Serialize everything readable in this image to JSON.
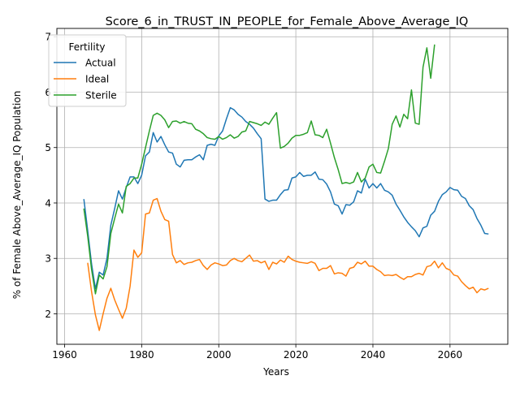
{
  "chart_data": {
    "type": "line",
    "title": "Score_6_in_TRUST_IN_PEOPLE_for_Female_Above_Average_IQ",
    "xlabel": "Years",
    "ylabel": "% of Female Above_Average_IQ Population",
    "xlim": [
      1958,
      2075
    ],
    "ylim": [
      1.45,
      7.15
    ],
    "xticks": [
      1960,
      1980,
      2000,
      2020,
      2040,
      2060
    ],
    "yticks": [
      2,
      3,
      4,
      5,
      6,
      7
    ],
    "grid": true,
    "legend": {
      "title": "Fertility",
      "placement": "top-left"
    },
    "series": [
      {
        "name": "Actual",
        "color": "#1f77b4",
        "points": [
          [
            1965,
            4.07
          ],
          [
            1966,
            3.5
          ],
          [
            1967,
            2.9
          ],
          [
            1968,
            2.45
          ],
          [
            1969,
            2.75
          ],
          [
            1970,
            2.7
          ],
          [
            1971,
            3.0
          ],
          [
            1972,
            3.6
          ],
          [
            1973,
            3.9
          ],
          [
            1974,
            4.22
          ],
          [
            1975,
            4.07
          ],
          [
            1976,
            4.28
          ],
          [
            1977,
            4.47
          ],
          [
            1978,
            4.47
          ],
          [
            1979,
            4.35
          ],
          [
            1980,
            4.5
          ],
          [
            1981,
            4.85
          ],
          [
            1982,
            4.92
          ],
          [
            1983,
            5.27
          ],
          [
            1984,
            5.1
          ],
          [
            1985,
            5.2
          ],
          [
            1986,
            5.05
          ],
          [
            1987,
            4.92
          ],
          [
            1988,
            4.9
          ],
          [
            1989,
            4.7
          ],
          [
            1990,
            4.65
          ],
          [
            1991,
            4.77
          ],
          [
            1992,
            4.78
          ],
          [
            1993,
            4.78
          ],
          [
            1994,
            4.83
          ],
          [
            1995,
            4.87
          ],
          [
            1996,
            4.78
          ],
          [
            1997,
            5.04
          ],
          [
            1998,
            5.06
          ],
          [
            1999,
            5.04
          ],
          [
            2000,
            5.21
          ],
          [
            2001,
            5.3
          ],
          [
            2002,
            5.52
          ],
          [
            2003,
            5.72
          ],
          [
            2004,
            5.68
          ],
          [
            2005,
            5.6
          ],
          [
            2006,
            5.55
          ],
          [
            2007,
            5.47
          ],
          [
            2008,
            5.42
          ],
          [
            2009,
            5.35
          ],
          [
            2010,
            5.25
          ],
          [
            2011,
            5.16
          ],
          [
            2012,
            4.07
          ],
          [
            2013,
            4.03
          ],
          [
            2014,
            4.05
          ],
          [
            2015,
            4.05
          ],
          [
            2016,
            4.15
          ],
          [
            2017,
            4.23
          ],
          [
            2018,
            4.24
          ],
          [
            2019,
            4.45
          ],
          [
            2020,
            4.47
          ],
          [
            2021,
            4.55
          ],
          [
            2022,
            4.48
          ],
          [
            2023,
            4.5
          ],
          [
            2024,
            4.5
          ],
          [
            2025,
            4.56
          ],
          [
            2026,
            4.43
          ],
          [
            2027,
            4.42
          ],
          [
            2028,
            4.34
          ],
          [
            2029,
            4.2
          ],
          [
            2030,
            3.98
          ],
          [
            2031,
            3.95
          ],
          [
            2032,
            3.8
          ],
          [
            2033,
            3.97
          ],
          [
            2034,
            3.96
          ],
          [
            2035,
            4.02
          ],
          [
            2036,
            4.22
          ],
          [
            2037,
            4.18
          ],
          [
            2038,
            4.43
          ],
          [
            2039,
            4.27
          ],
          [
            2040,
            4.35
          ],
          [
            2041,
            4.27
          ],
          [
            2042,
            4.35
          ],
          [
            2043,
            4.23
          ],
          [
            2044,
            4.2
          ],
          [
            2045,
            4.14
          ],
          [
            2046,
            3.98
          ],
          [
            2047,
            3.87
          ],
          [
            2048,
            3.75
          ],
          [
            2049,
            3.65
          ],
          [
            2050,
            3.57
          ],
          [
            2051,
            3.5
          ],
          [
            2052,
            3.39
          ],
          [
            2053,
            3.55
          ],
          [
            2054,
            3.58
          ],
          [
            2055,
            3.78
          ],
          [
            2056,
            3.85
          ],
          [
            2057,
            4.03
          ],
          [
            2058,
            4.15
          ],
          [
            2059,
            4.2
          ],
          [
            2060,
            4.28
          ],
          [
            2061,
            4.24
          ],
          [
            2062,
            4.23
          ],
          [
            2063,
            4.12
          ],
          [
            2064,
            4.08
          ],
          [
            2065,
            3.95
          ],
          [
            2066,
            3.88
          ],
          [
            2067,
            3.72
          ],
          [
            2068,
            3.6
          ],
          [
            2069,
            3.45
          ],
          [
            2070,
            3.44
          ]
        ]
      },
      {
        "name": "Ideal",
        "color": "#ff7f0e",
        "points": [
          [
            1966,
            2.92
          ],
          [
            1967,
            2.4
          ],
          [
            1968,
            1.98
          ],
          [
            1969,
            1.7
          ],
          [
            1970,
            2.0
          ],
          [
            1971,
            2.28
          ],
          [
            1972,
            2.46
          ],
          [
            1973,
            2.25
          ],
          [
            1974,
            2.08
          ],
          [
            1975,
            1.92
          ],
          [
            1976,
            2.1
          ],
          [
            1977,
            2.5
          ],
          [
            1978,
            3.15
          ],
          [
            1979,
            3.02
          ],
          [
            1980,
            3.1
          ],
          [
            1981,
            3.8
          ],
          [
            1982,
            3.82
          ],
          [
            1983,
            4.05
          ],
          [
            1984,
            4.08
          ],
          [
            1985,
            3.85
          ],
          [
            1986,
            3.7
          ],
          [
            1987,
            3.67
          ],
          [
            1988,
            3.07
          ],
          [
            1989,
            2.92
          ],
          [
            1990,
            2.96
          ],
          [
            1991,
            2.89
          ],
          [
            1992,
            2.92
          ],
          [
            1993,
            2.93
          ],
          [
            1994,
            2.96
          ],
          [
            1995,
            2.98
          ],
          [
            1996,
            2.87
          ],
          [
            1997,
            2.8
          ],
          [
            1998,
            2.88
          ],
          [
            1999,
            2.92
          ],
          [
            2000,
            2.9
          ],
          [
            2001,
            2.87
          ],
          [
            2002,
            2.88
          ],
          [
            2003,
            2.96
          ],
          [
            2004,
            3.0
          ],
          [
            2005,
            2.96
          ],
          [
            2006,
            2.94
          ],
          [
            2007,
            3.0
          ],
          [
            2008,
            3.06
          ],
          [
            2009,
            2.95
          ],
          [
            2010,
            2.96
          ],
          [
            2011,
            2.92
          ],
          [
            2012,
            2.95
          ],
          [
            2013,
            2.8
          ],
          [
            2014,
            2.93
          ],
          [
            2015,
            2.9
          ],
          [
            2016,
            2.97
          ],
          [
            2017,
            2.93
          ],
          [
            2018,
            3.04
          ],
          [
            2019,
            2.98
          ],
          [
            2020,
            2.95
          ],
          [
            2021,
            2.93
          ],
          [
            2022,
            2.92
          ],
          [
            2023,
            2.91
          ],
          [
            2024,
            2.94
          ],
          [
            2025,
            2.91
          ],
          [
            2026,
            2.78
          ],
          [
            2027,
            2.82
          ],
          [
            2028,
            2.82
          ],
          [
            2029,
            2.87
          ],
          [
            2030,
            2.72
          ],
          [
            2031,
            2.74
          ],
          [
            2032,
            2.73
          ],
          [
            2033,
            2.68
          ],
          [
            2034,
            2.82
          ],
          [
            2035,
            2.84
          ],
          [
            2036,
            2.93
          ],
          [
            2037,
            2.9
          ],
          [
            2038,
            2.95
          ],
          [
            2039,
            2.86
          ],
          [
            2040,
            2.86
          ],
          [
            2041,
            2.8
          ],
          [
            2042,
            2.76
          ],
          [
            2043,
            2.69
          ],
          [
            2044,
            2.7
          ],
          [
            2045,
            2.69
          ],
          [
            2046,
            2.71
          ],
          [
            2047,
            2.66
          ],
          [
            2048,
            2.62
          ],
          [
            2049,
            2.67
          ],
          [
            2050,
            2.67
          ],
          [
            2051,
            2.71
          ],
          [
            2052,
            2.73
          ],
          [
            2053,
            2.7
          ],
          [
            2054,
            2.85
          ],
          [
            2055,
            2.87
          ],
          [
            2056,
            2.95
          ],
          [
            2057,
            2.83
          ],
          [
            2058,
            2.92
          ],
          [
            2059,
            2.82
          ],
          [
            2060,
            2.79
          ],
          [
            2061,
            2.7
          ],
          [
            2062,
            2.68
          ],
          [
            2063,
            2.58
          ],
          [
            2064,
            2.51
          ],
          [
            2065,
            2.45
          ],
          [
            2066,
            2.48
          ],
          [
            2067,
            2.38
          ],
          [
            2068,
            2.45
          ],
          [
            2069,
            2.43
          ],
          [
            2070,
            2.46
          ]
        ]
      },
      {
        "name": "Sterile",
        "color": "#2ca02c",
        "points": [
          [
            1965,
            3.9
          ],
          [
            1966,
            3.4
          ],
          [
            1967,
            2.8
          ],
          [
            1968,
            2.36
          ],
          [
            1969,
            2.7
          ],
          [
            1970,
            2.63
          ],
          [
            1971,
            2.85
          ],
          [
            1972,
            3.45
          ],
          [
            1973,
            3.72
          ],
          [
            1974,
            3.98
          ],
          [
            1975,
            3.82
          ],
          [
            1976,
            4.3
          ],
          [
            1977,
            4.35
          ],
          [
            1978,
            4.45
          ],
          [
            1979,
            4.45
          ],
          [
            1980,
            4.7
          ],
          [
            1981,
            5.0
          ],
          [
            1982,
            5.3
          ],
          [
            1983,
            5.58
          ],
          [
            1984,
            5.62
          ],
          [
            1985,
            5.58
          ],
          [
            1986,
            5.5
          ],
          [
            1987,
            5.36
          ],
          [
            1988,
            5.47
          ],
          [
            1989,
            5.48
          ],
          [
            1990,
            5.44
          ],
          [
            1991,
            5.47
          ],
          [
            1992,
            5.44
          ],
          [
            1993,
            5.43
          ],
          [
            1994,
            5.33
          ],
          [
            1995,
            5.3
          ],
          [
            1996,
            5.25
          ],
          [
            1997,
            5.18
          ],
          [
            1998,
            5.16
          ],
          [
            1999,
            5.15
          ],
          [
            2000,
            5.2
          ],
          [
            2001,
            5.15
          ],
          [
            2002,
            5.18
          ],
          [
            2003,
            5.23
          ],
          [
            2004,
            5.17
          ],
          [
            2005,
            5.2
          ],
          [
            2006,
            5.28
          ],
          [
            2007,
            5.3
          ],
          [
            2008,
            5.47
          ],
          [
            2009,
            5.45
          ],
          [
            2010,
            5.43
          ],
          [
            2011,
            5.4
          ],
          [
            2012,
            5.46
          ],
          [
            2013,
            5.42
          ],
          [
            2014,
            5.53
          ],
          [
            2015,
            5.63
          ],
          [
            2016,
            4.99
          ],
          [
            2017,
            5.02
          ],
          [
            2018,
            5.08
          ],
          [
            2019,
            5.17
          ],
          [
            2020,
            5.22
          ],
          [
            2021,
            5.22
          ],
          [
            2022,
            5.24
          ],
          [
            2023,
            5.27
          ],
          [
            2024,
            5.48
          ],
          [
            2025,
            5.23
          ],
          [
            2026,
            5.22
          ],
          [
            2027,
            5.18
          ],
          [
            2028,
            5.33
          ],
          [
            2029,
            5.08
          ],
          [
            2030,
            4.82
          ],
          [
            2031,
            4.6
          ],
          [
            2032,
            4.35
          ],
          [
            2033,
            4.37
          ],
          [
            2034,
            4.35
          ],
          [
            2035,
            4.38
          ],
          [
            2036,
            4.55
          ],
          [
            2037,
            4.38
          ],
          [
            2038,
            4.45
          ],
          [
            2039,
            4.65
          ],
          [
            2040,
            4.7
          ],
          [
            2041,
            4.55
          ],
          [
            2042,
            4.54
          ],
          [
            2043,
            4.75
          ],
          [
            2044,
            4.98
          ],
          [
            2045,
            5.42
          ],
          [
            2046,
            5.57
          ],
          [
            2047,
            5.37
          ],
          [
            2048,
            5.6
          ],
          [
            2049,
            5.52
          ],
          [
            2050,
            6.04
          ],
          [
            2051,
            5.44
          ],
          [
            2052,
            5.42
          ],
          [
            2053,
            6.45
          ],
          [
            2054,
            6.8
          ],
          [
            2055,
            6.25
          ],
          [
            2056,
            6.86
          ]
        ]
      }
    ]
  }
}
